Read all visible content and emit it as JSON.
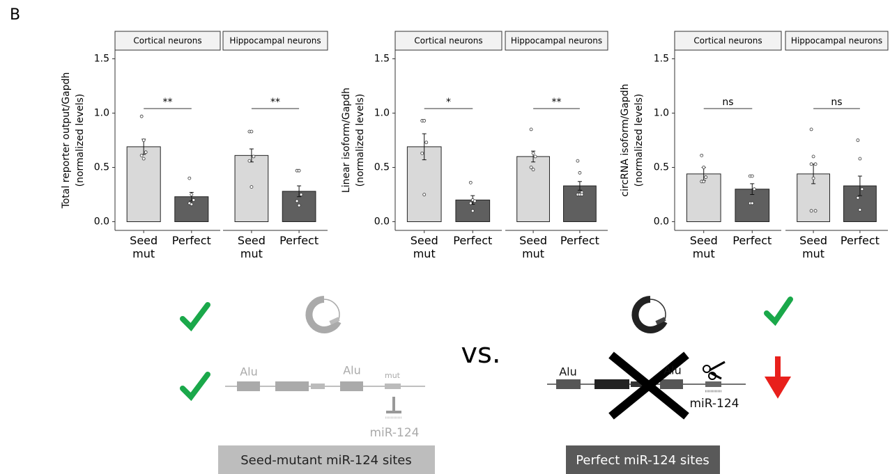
{
  "panel_label": "B",
  "chart_data": [
    {
      "type": "bar",
      "ylabel": "Total reporter output/Gapdh",
      "ylabel_sub": "(normalized levels)",
      "ylim": [
        -0.08,
        1.58
      ],
      "yticks": [
        {
          "value": 0,
          "label": "0.0"
        },
        {
          "value": 0.5,
          "label": "0.5"
        },
        {
          "value": 1,
          "label": "1.0"
        },
        {
          "value": 1.5,
          "label": "1.5"
        }
      ],
      "facets": [
        {
          "title": "Cortical neurons",
          "categories": [
            "Seed mut",
            "Perfect"
          ],
          "colors": [
            "#d9d9d9",
            "#5f5f5f"
          ],
          "values": [
            0.69,
            0.23
          ],
          "errors": [
            0.07,
            0.04
          ],
          "points": [
            [
              0.97,
              0.75,
              0.64,
              0.61,
              0.58
            ],
            [
              0.4,
              0.25,
              0.2,
              0.17,
              0.16
            ]
          ],
          "significance": "**"
        },
        {
          "title": "Hippocampal neurons",
          "categories": [
            "Seed mut",
            "Perfect"
          ],
          "colors": [
            "#d9d9d9",
            "#5f5f5f"
          ],
          "values": [
            0.61,
            0.28
          ],
          "errors": [
            0.06,
            0.05
          ],
          "points": [
            [
              0.83,
              0.83,
              0.6,
              0.56,
              0.32
            ],
            [
              0.47,
              0.47,
              0.25,
              0.19,
              0.15
            ]
          ],
          "significance": "**"
        }
      ]
    },
    {
      "type": "bar",
      "ylabel": "Linear isoform/Gapdh",
      "ylabel_sub": "(normalized levels)",
      "ylim": [
        -0.08,
        1.58
      ],
      "yticks": [
        {
          "value": 0,
          "label": "0.0"
        },
        {
          "value": 0.5,
          "label": "0.5"
        },
        {
          "value": 1,
          "label": "1.0"
        },
        {
          "value": 1.5,
          "label": "1.5"
        }
      ],
      "facets": [
        {
          "title": "Cortical neurons",
          "categories": [
            "Seed mut",
            "Perfect"
          ],
          "colors": [
            "#d9d9d9",
            "#5f5f5f"
          ],
          "values": [
            0.69,
            0.2
          ],
          "errors": [
            0.12,
            0.04
          ],
          "points": [
            [
              0.93,
              0.93,
              0.73,
              0.63,
              0.25
            ],
            [
              0.36,
              0.2,
              0.19,
              0.17,
              0.1
            ]
          ],
          "significance": "*"
        },
        {
          "title": "Hippocampal neurons",
          "categories": [
            "Seed mut",
            "Perfect"
          ],
          "colors": [
            "#d9d9d9",
            "#5f5f5f"
          ],
          "values": [
            0.6,
            0.33
          ],
          "errors": [
            0.05,
            0.04
          ],
          "points": [
            [
              0.85,
              0.63,
              0.6,
              0.5,
              0.48
            ],
            [
              0.56,
              0.45,
              0.27,
              0.25,
              0.25,
              0.25
            ]
          ],
          "significance": "**"
        }
      ]
    },
    {
      "type": "bar",
      "ylabel": "circRNA isoform/Gapdh",
      "ylabel_sub": "(normalized levels)",
      "ylim": [
        -0.08,
        1.58
      ],
      "yticks": [
        {
          "value": 0,
          "label": "0.0"
        },
        {
          "value": 0.5,
          "label": "0.5"
        },
        {
          "value": 1,
          "label": "1.0"
        },
        {
          "value": 1.5,
          "label": "1.5"
        }
      ],
      "facets": [
        {
          "title": "Cortical neurons",
          "categories": [
            "Seed mut",
            "Perfect"
          ],
          "colors": [
            "#d9d9d9",
            "#5f5f5f"
          ],
          "values": [
            0.44,
            0.3
          ],
          "errors": [
            0.06,
            0.05
          ],
          "points": [
            [
              0.61,
              0.5,
              0.41,
              0.37,
              0.37
            ],
            [
              0.42,
              0.42,
              0.3,
              0.17,
              0.17
            ]
          ],
          "significance": "ns"
        },
        {
          "title": "Hippocampal neurons",
          "categories": [
            "Seed mut",
            "Perfect"
          ],
          "colors": [
            "#d9d9d9",
            "#5f5f5f"
          ],
          "values": [
            0.44,
            0.33
          ],
          "errors": [
            0.09,
            0.09
          ],
          "points": [
            [
              0.85,
              0.6,
              0.53,
              0.53,
              0.4,
              0.1,
              0.1
            ],
            [
              0.75,
              0.58,
              0.3,
              0.22,
              0.11
            ]
          ],
          "significance": "ns"
        }
      ]
    }
  ],
  "diagram": {
    "versus": "vs.",
    "left": {
      "alu_1": "Alu",
      "alu_2": "Alu",
      "mut": "mut",
      "mirna": "miR-124",
      "caption": "Seed-mutant miR-124 sites"
    },
    "right": {
      "alu_1": "Alu",
      "alu_2": "Alu",
      "mirna": "miR-124",
      "caption": "Perfect miR-124 sites"
    }
  }
}
